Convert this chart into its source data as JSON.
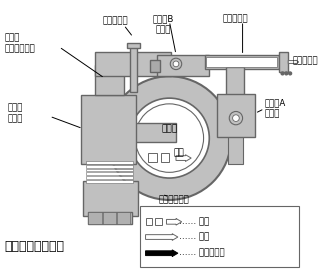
{
  "title": "真空ポンプ作動時",
  "bg_color": "#ffffff",
  "font_color": "#000000",
  "line_color": "#666666",
  "fill_color": "#c0c0c0",
  "white": "#ffffff",
  "black": "#000000",
  "label_spindle": "スピンドル",
  "label_cvb": "逆止弁B\n〈開〉",
  "label_vacuum_pipe": "真空バイプ",
  "label_shutoff_diaphragm": "止水弁\nダイヤフラム",
  "label_vacuum_pump": "真空ポンプ",
  "label_cva": "逆止弁A\n〈閉〉",
  "label_shutoff_open": "止水弁\n〈開〉",
  "label_suction": "吸水口",
  "label_air": "空気",
  "label_pump_cover": "ポンプカバー",
  "legend_air": "空気",
  "legend_pressure": "水圧",
  "legend_device": "装置の動き"
}
